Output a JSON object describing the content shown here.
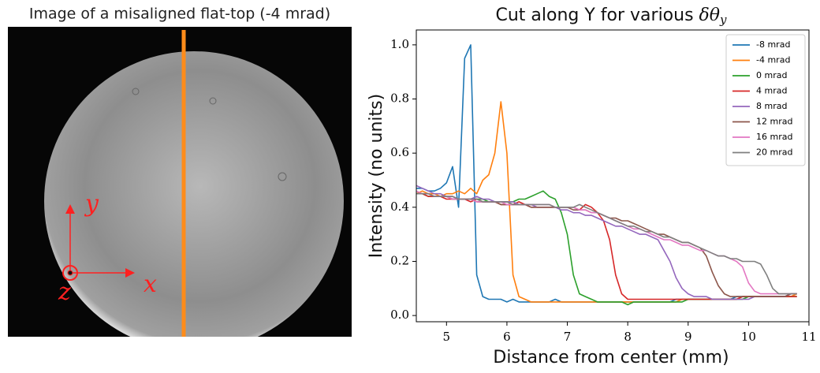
{
  "image_panel": {
    "title": "Image of a misaligned flat-top (-4 mrad)",
    "axis_y": "y",
    "axis_x": "x",
    "axis_z": "z"
  },
  "chart_data": {
    "type": "line",
    "title": "Cut along Y for various",
    "title_symbol": "δθ",
    "title_subscript": "y",
    "xlabel": "Distance from center (mm)",
    "ylabel": "Intensity (no units)",
    "xlim": [
      4.5,
      11
    ],
    "ylim": [
      -0.023,
      1.055
    ],
    "xticks": [
      5,
      6,
      7,
      8,
      9,
      10,
      11
    ],
    "yticks": [
      {
        "value": 0,
        "label": "0.0"
      },
      0.2,
      0.4,
      0.6,
      0.8,
      {
        "value": 1,
        "label": "1.0"
      }
    ],
    "legend": "upper right",
    "x": [
      4.5,
      4.6,
      4.7,
      4.8,
      4.9,
      5.0,
      5.1,
      5.2,
      5.3,
      5.4,
      5.5,
      5.6,
      5.7,
      5.8,
      5.9,
      6.0,
      6.1,
      6.2,
      6.3,
      6.4,
      6.5,
      6.6,
      6.7,
      6.8,
      6.9,
      7.0,
      7.1,
      7.2,
      7.3,
      7.4,
      7.5,
      7.6,
      7.7,
      7.8,
      7.9,
      8.0,
      8.1,
      8.2,
      8.3,
      8.4,
      8.5,
      8.6,
      8.7,
      8.8,
      8.9,
      9.0,
      9.1,
      9.2,
      9.3,
      9.4,
      9.5,
      9.6,
      9.7,
      9.8,
      9.9,
      10.0,
      10.1,
      10.2,
      10.3,
      10.4,
      10.5,
      10.6,
      10.7,
      10.8
    ],
    "series": [
      {
        "name": "-8 mrad",
        "color": "#1f77b4",
        "values": [
          0.47,
          0.47,
          0.46,
          0.46,
          0.47,
          0.49,
          0.55,
          0.4,
          0.95,
          1.0,
          0.15,
          0.07,
          0.06,
          0.06,
          0.06,
          0.05,
          0.06,
          0.05,
          0.05,
          0.05,
          0.05,
          0.05,
          0.05,
          0.06,
          0.05,
          0.05,
          0.05,
          0.05,
          0.05,
          0.05,
          0.05,
          0.05,
          0.05,
          0.05,
          0.05,
          0.05,
          0.05,
          0.05,
          0.05,
          0.05,
          0.05,
          0.05,
          0.05,
          0.06,
          0.06,
          0.06,
          0.06,
          0.06,
          0.06,
          0.06,
          0.06,
          0.06,
          0.06,
          0.07,
          0.07,
          0.07,
          0.07,
          0.07,
          0.07,
          0.07,
          0.07,
          0.07,
          0.08,
          0.08
        ]
      },
      {
        "name": "-4 mrad",
        "color": "#ff7f0e",
        "values": [
          0.45,
          0.46,
          0.45,
          0.45,
          0.44,
          0.45,
          0.45,
          0.46,
          0.45,
          0.47,
          0.45,
          0.5,
          0.52,
          0.6,
          0.79,
          0.6,
          0.15,
          0.07,
          0.06,
          0.05,
          0.05,
          0.05,
          0.05,
          0.05,
          0.05,
          0.05,
          0.05,
          0.05,
          0.05,
          0.05,
          0.05,
          0.05,
          0.05,
          0.05,
          0.05,
          0.05,
          0.05,
          0.05,
          0.05,
          0.05,
          0.05,
          0.05,
          0.05,
          0.05,
          0.06,
          0.06,
          0.06,
          0.06,
          0.06,
          0.06,
          0.06,
          0.06,
          0.06,
          0.06,
          0.07,
          0.07,
          0.07,
          0.07,
          0.07,
          0.07,
          0.07,
          0.07,
          0.07,
          0.08
        ]
      },
      {
        "name": "0 mrad",
        "color": "#2ca02c",
        "values": [
          0.45,
          0.45,
          0.44,
          0.44,
          0.44,
          0.44,
          0.43,
          0.43,
          0.43,
          0.43,
          0.43,
          0.43,
          0.42,
          0.42,
          0.42,
          0.42,
          0.42,
          0.43,
          0.43,
          0.44,
          0.45,
          0.46,
          0.44,
          0.43,
          0.38,
          0.3,
          0.15,
          0.08,
          0.07,
          0.06,
          0.05,
          0.05,
          0.05,
          0.05,
          0.05,
          0.04,
          0.05,
          0.05,
          0.05,
          0.05,
          0.05,
          0.05,
          0.05,
          0.05,
          0.05,
          0.06,
          0.06,
          0.06,
          0.06,
          0.06,
          0.06,
          0.06,
          0.06,
          0.06,
          0.06,
          0.07,
          0.07,
          0.07,
          0.07,
          0.07,
          0.07,
          0.07,
          0.07,
          0.07
        ]
      },
      {
        "name": "4 mrad",
        "color": "#d62728",
        "values": [
          0.45,
          0.45,
          0.44,
          0.44,
          0.44,
          0.43,
          0.43,
          0.43,
          0.43,
          0.42,
          0.43,
          0.42,
          0.42,
          0.42,
          0.41,
          0.41,
          0.41,
          0.42,
          0.41,
          0.4,
          0.4,
          0.4,
          0.4,
          0.4,
          0.4,
          0.4,
          0.4,
          0.39,
          0.41,
          0.4,
          0.38,
          0.35,
          0.28,
          0.15,
          0.08,
          0.06,
          0.06,
          0.06,
          0.06,
          0.06,
          0.06,
          0.06,
          0.06,
          0.06,
          0.06,
          0.06,
          0.06,
          0.06,
          0.06,
          0.06,
          0.06,
          0.06,
          0.06,
          0.06,
          0.07,
          0.07,
          0.07,
          0.07,
          0.07,
          0.07,
          0.07,
          0.07,
          0.07,
          0.07
        ]
      },
      {
        "name": "8 mrad",
        "color": "#9467bd",
        "values": [
          0.48,
          0.47,
          0.46,
          0.45,
          0.45,
          0.44,
          0.44,
          0.43,
          0.43,
          0.43,
          0.44,
          0.43,
          0.43,
          0.42,
          0.42,
          0.42,
          0.42,
          0.41,
          0.41,
          0.41,
          0.4,
          0.4,
          0.4,
          0.4,
          0.39,
          0.39,
          0.38,
          0.38,
          0.37,
          0.37,
          0.36,
          0.35,
          0.34,
          0.33,
          0.33,
          0.32,
          0.31,
          0.3,
          0.3,
          0.29,
          0.28,
          0.24,
          0.2,
          0.14,
          0.1,
          0.08,
          0.07,
          0.07,
          0.07,
          0.06,
          0.06,
          0.06,
          0.06,
          0.06,
          0.06,
          0.06,
          0.07,
          0.07,
          0.07,
          0.07,
          0.07,
          0.07,
          0.08,
          0.08
        ]
      },
      {
        "name": "12 mrad",
        "color": "#8c564b",
        "values": [
          0.45,
          0.45,
          0.45,
          0.44,
          0.44,
          0.44,
          0.43,
          0.43,
          0.43,
          0.43,
          0.42,
          0.42,
          0.42,
          0.42,
          0.41,
          0.41,
          0.41,
          0.41,
          0.41,
          0.4,
          0.4,
          0.4,
          0.4,
          0.4,
          0.4,
          0.4,
          0.39,
          0.39,
          0.39,
          0.38,
          0.38,
          0.37,
          0.36,
          0.36,
          0.35,
          0.35,
          0.34,
          0.33,
          0.32,
          0.31,
          0.3,
          0.3,
          0.29,
          0.28,
          0.27,
          0.27,
          0.26,
          0.25,
          0.22,
          0.16,
          0.11,
          0.08,
          0.07,
          0.07,
          0.07,
          0.07,
          0.07,
          0.07,
          0.07,
          0.07,
          0.07,
          0.07,
          0.08,
          0.08
        ]
      },
      {
        "name": "16 mrad",
        "color": "#e377c2",
        "values": [
          0.46,
          0.45,
          0.45,
          0.44,
          0.44,
          0.44,
          0.43,
          0.43,
          0.43,
          0.43,
          0.42,
          0.42,
          0.42,
          0.42,
          0.42,
          0.41,
          0.41,
          0.41,
          0.41,
          0.41,
          0.41,
          0.41,
          0.41,
          0.4,
          0.4,
          0.4,
          0.4,
          0.39,
          0.39,
          0.38,
          0.38,
          0.37,
          0.36,
          0.35,
          0.34,
          0.33,
          0.32,
          0.32,
          0.31,
          0.3,
          0.29,
          0.28,
          0.28,
          0.27,
          0.26,
          0.26,
          0.25,
          0.24,
          0.24,
          0.23,
          0.22,
          0.22,
          0.21,
          0.2,
          0.18,
          0.12,
          0.09,
          0.08,
          0.08,
          0.08,
          0.08,
          0.08,
          0.08,
          0.08
        ]
      },
      {
        "name": "20 mrad",
        "color": "#7f7f7f",
        "values": [
          0.45,
          0.45,
          0.45,
          0.44,
          0.44,
          0.44,
          0.44,
          0.43,
          0.43,
          0.43,
          0.43,
          0.42,
          0.42,
          0.42,
          0.42,
          0.42,
          0.41,
          0.41,
          0.41,
          0.41,
          0.41,
          0.41,
          0.41,
          0.4,
          0.4,
          0.4,
          0.4,
          0.41,
          0.4,
          0.39,
          0.38,
          0.37,
          0.36,
          0.35,
          0.34,
          0.33,
          0.33,
          0.32,
          0.31,
          0.31,
          0.3,
          0.29,
          0.29,
          0.28,
          0.27,
          0.27,
          0.26,
          0.25,
          0.24,
          0.23,
          0.22,
          0.22,
          0.21,
          0.21,
          0.2,
          0.2,
          0.2,
          0.19,
          0.15,
          0.1,
          0.08,
          0.08,
          0.08,
          0.08
        ]
      }
    ]
  }
}
